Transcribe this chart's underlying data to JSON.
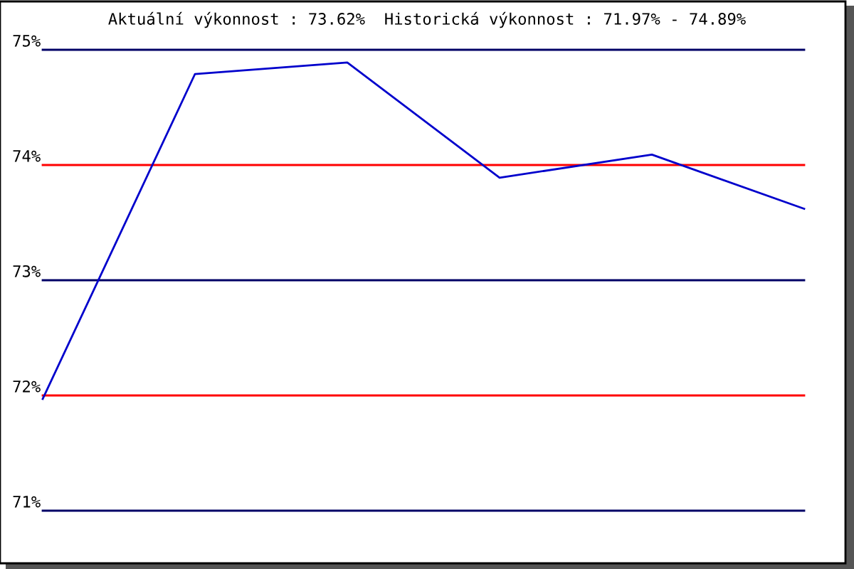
{
  "chart_data": {
    "type": "line",
    "title": "Aktuální výkonnost : 73.62%  Historická výkonnost : 71.97% - 74.89%",
    "categories": [
      null,
      null,
      null,
      null,
      null,
      null
    ],
    "series": [
      {
        "color": "#0000cc",
        "values": [
          71.97,
          74.79,
          74.89,
          73.89,
          74.09,
          73.62
        ]
      }
    ],
    "ylim": [
      71,
      75
    ],
    "yticks": [
      {
        "value": 71,
        "label": "71%"
      },
      {
        "value": 72,
        "label": "72%"
      },
      {
        "value": 73,
        "label": "73%"
      },
      {
        "value": 74,
        "label": "74%"
      },
      {
        "value": 75,
        "label": "75%"
      }
    ],
    "ref_lines": [
      {
        "axis": "y",
        "value": 75,
        "color": "#000066"
      },
      {
        "axis": "y",
        "value": 74,
        "color": "#ff0000"
      },
      {
        "axis": "y",
        "value": 73,
        "color": "#000066"
      },
      {
        "axis": "y",
        "value": 72,
        "color": "#ff0000"
      },
      {
        "axis": "y",
        "value": 71,
        "color": "#000066"
      }
    ],
    "grid": false,
    "legend": false,
    "tick_labels": "y",
    "marker": "none",
    "line_style": "solid"
  }
}
